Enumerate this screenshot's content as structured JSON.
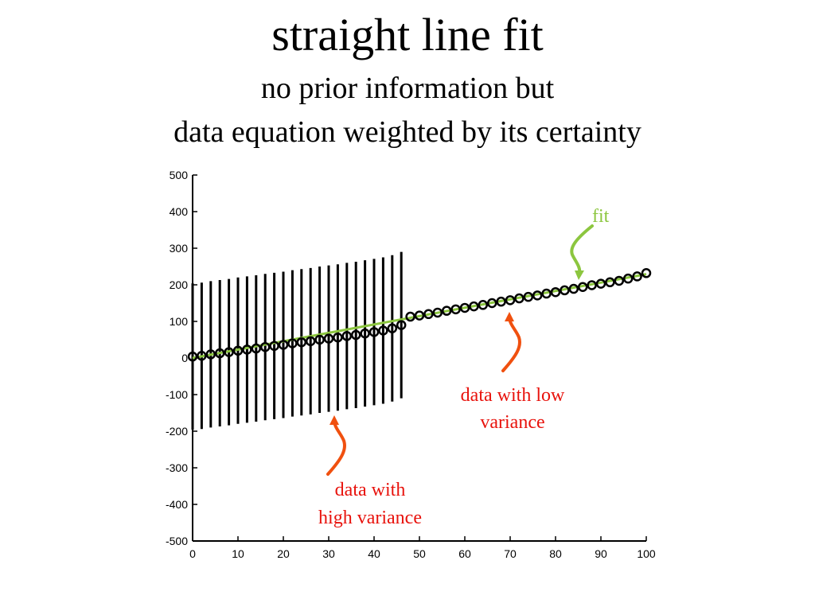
{
  "slide": {
    "title": "straight line fit",
    "subtitle_line1": "no prior information but",
    "subtitle_line2": "data equation weighted by its certainty"
  },
  "colors": {
    "fit": "#8cc63f",
    "annotation_red": "#e8120c",
    "arrow_orange": "#f0500f",
    "data": "#000000"
  },
  "chart_data": {
    "type": "scatter",
    "title": "",
    "xlabel": "",
    "ylabel": "",
    "xlim": [
      0,
      100
    ],
    "ylim": [
      -500,
      500
    ],
    "xticks": [
      0,
      10,
      20,
      30,
      40,
      50,
      60,
      70,
      80,
      90,
      100
    ],
    "yticks": [
      -500,
      -400,
      -300,
      -200,
      -100,
      0,
      100,
      200,
      300,
      400,
      500
    ],
    "grid": false,
    "series": [
      {
        "role": "data-high-variance",
        "x": [
          0,
          2,
          4,
          6,
          8,
          10,
          12,
          14,
          16,
          18,
          20,
          22,
          24,
          26,
          28,
          30,
          32,
          34,
          36,
          38,
          40,
          42,
          44,
          46
        ],
        "y": [
          4,
          6,
          10,
          13,
          16,
          20,
          23,
          26,
          30,
          33,
          36,
          40,
          43,
          46,
          50,
          53,
          56,
          60,
          63,
          67,
          71,
          75,
          81,
          90
        ],
        "error": 200
      },
      {
        "role": "data-low-variance",
        "x": [
          48,
          50,
          52,
          54,
          56,
          58,
          60,
          62,
          64,
          66,
          68,
          70,
          72,
          74,
          76,
          78,
          80,
          82,
          84,
          86,
          88,
          90,
          92,
          94,
          96,
          98,
          100
        ],
        "y": [
          113,
          116,
          120,
          124,
          129,
          133,
          137,
          141,
          145,
          150,
          154,
          158,
          163,
          167,
          171,
          176,
          180,
          185,
          189,
          194,
          199,
          203,
          207,
          211,
          217,
          223,
          232
        ],
        "error": 0
      },
      {
        "role": "fit",
        "x": [
          0,
          100
        ],
        "y": [
          0,
          229
        ]
      }
    ],
    "annotations": {
      "fit_label": "fit",
      "low_variance_line1": "data with low",
      "low_variance_line2": "variance",
      "high_variance_line1": "data with",
      "high_variance_line2": "high variance"
    }
  }
}
